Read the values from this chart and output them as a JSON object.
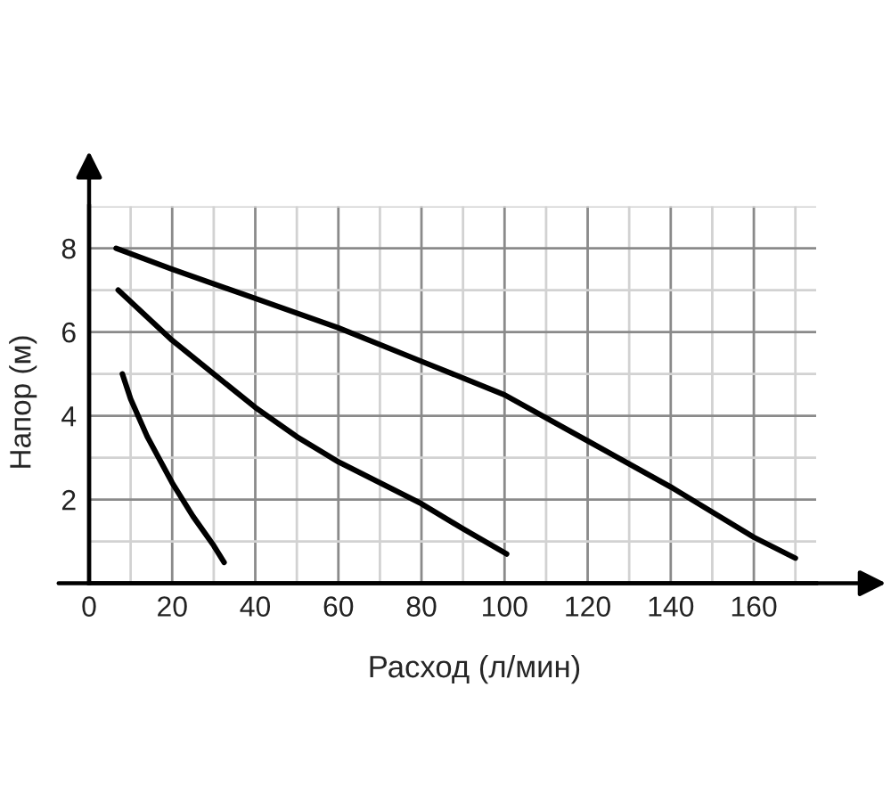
{
  "chart_data": {
    "type": "line",
    "xlabel": "Расход (л/мин)",
    "ylabel": "Напор (м)",
    "xlim": [
      0,
      175
    ],
    "ylim": [
      0,
      9
    ],
    "xticks": [
      0,
      20,
      40,
      60,
      80,
      100,
      120,
      140,
      160
    ],
    "yticks": [
      2,
      4,
      6,
      8
    ],
    "grid": true,
    "marker": "none",
    "line_style": "solid",
    "series": [
      {
        "color": "#000000",
        "x": [
          6.5,
          20,
          40,
          60,
          80,
          100,
          120,
          140,
          160,
          170
        ],
        "values": [
          8.0,
          7.5,
          6.8,
          6.1,
          5.3,
          4.5,
          3.4,
          2.3,
          1.1,
          0.6
        ]
      },
      {
        "color": "#000000",
        "x": [
          7,
          20,
          30,
          40,
          50,
          60,
          70,
          80,
          90,
          100.5
        ],
        "values": [
          7.0,
          5.8,
          5.0,
          4.2,
          3.5,
          2.9,
          2.4,
          1.9,
          1.3,
          0.7
        ]
      },
      {
        "color": "#000000",
        "x": [
          8,
          10,
          14,
          20,
          25,
          30,
          32.5
        ],
        "values": [
          5.0,
          4.4,
          3.5,
          2.4,
          1.6,
          0.9,
          0.5
        ]
      }
    ]
  }
}
